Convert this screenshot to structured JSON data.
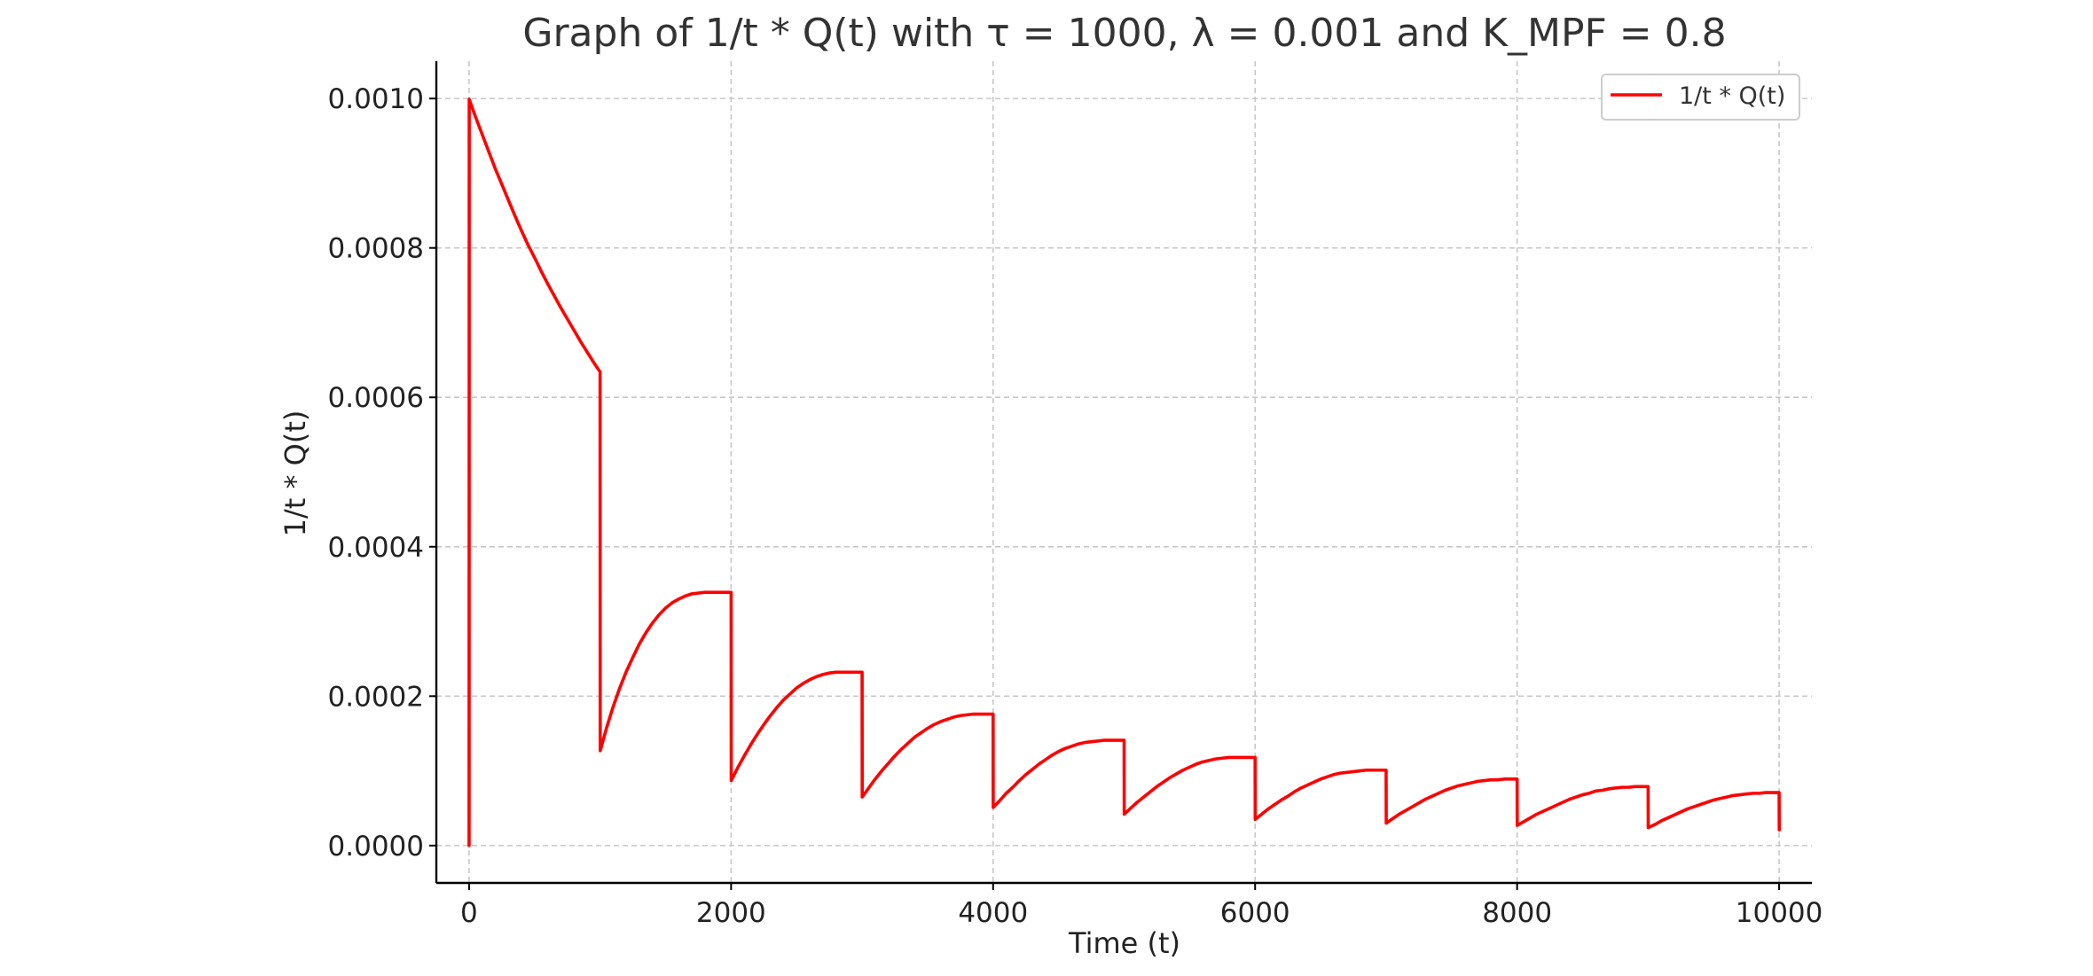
{
  "chart_data": {
    "type": "line",
    "title": "Graph of 1/t * Q(t) with τ = 1000, λ = 0.001 and K_MPF = 0.8",
    "xlabel": "Time (t)",
    "ylabel": "1/t * Q(t)",
    "xlim": [
      -250,
      10250
    ],
    "ylim": [
      -5e-05,
      0.00105
    ],
    "xticks": [
      0,
      2000,
      4000,
      6000,
      8000,
      10000
    ],
    "xtick_labels": [
      "0",
      "2000",
      "4000",
      "6000",
      "8000",
      "10000"
    ],
    "yticks": [
      0.0,
      0.0002,
      0.0004,
      0.0006,
      0.0008,
      0.001
    ],
    "ytick_labels": [
      "0.0000",
      "0.0002",
      "0.0004",
      "0.0006",
      "0.0008",
      "0.0010"
    ],
    "grid": true,
    "legend_position": "top-right",
    "series": [
      {
        "name": "1/t * Q(t)",
        "color": "#ff0000",
        "x": [
          0,
          1,
          50,
          100,
          150,
          200,
          250,
          300,
          350,
          400,
          450,
          500,
          550,
          600,
          650,
          700,
          750,
          800,
          850,
          900,
          950,
          1000,
          1001,
          1050,
          1100,
          1150,
          1200,
          1250,
          1300,
          1350,
          1400,
          1450,
          1500,
          1550,
          1600,
          1650,
          1700,
          1750,
          1800,
          1850,
          1900,
          1950,
          2000,
          2001,
          2050,
          2100,
          2150,
          2200,
          2250,
          2300,
          2350,
          2400,
          2450,
          2500,
          2550,
          2600,
          2650,
          2700,
          2750,
          2800,
          2850,
          2900,
          2950,
          3000,
          3001,
          3050,
          3100,
          3150,
          3200,
          3250,
          3300,
          3350,
          3400,
          3450,
          3500,
          3550,
          3600,
          3650,
          3700,
          3750,
          3800,
          3850,
          3900,
          3950,
          4000,
          4001,
          4050,
          4100,
          4150,
          4200,
          4250,
          4300,
          4350,
          4400,
          4450,
          4500,
          4550,
          4600,
          4650,
          4700,
          4750,
          4800,
          4850,
          4900,
          4950,
          5000,
          5001,
          5050,
          5100,
          5150,
          5200,
          5250,
          5300,
          5350,
          5400,
          5450,
          5500,
          5550,
          5600,
          5650,
          5700,
          5750,
          5800,
          5850,
          5900,
          5950,
          6000,
          6001,
          6050,
          6100,
          6150,
          6200,
          6250,
          6300,
          6350,
          6400,
          6450,
          6500,
          6550,
          6600,
          6650,
          6700,
          6750,
          6800,
          6850,
          6900,
          6950,
          7000,
          7001,
          7050,
          7100,
          7150,
          7200,
          7250,
          7300,
          7350,
          7400,
          7450,
          7500,
          7550,
          7600,
          7650,
          7700,
          7750,
          7800,
          7850,
          7900,
          7950,
          8000,
          8001,
          8050,
          8100,
          8150,
          8200,
          8250,
          8300,
          8350,
          8400,
          8450,
          8500,
          8550,
          8600,
          8650,
          8700,
          8750,
          8800,
          8850,
          8900,
          8950,
          9000,
          9001,
          9050,
          9100,
          9150,
          9200,
          9250,
          9300,
          9350,
          9400,
          9450,
          9500,
          9550,
          9600,
          9650,
          9700,
          9750,
          9800,
          9850,
          9900,
          9950,
          10000,
          10001
        ],
        "y": [
          0.0,
          0.000999,
          0.000975,
          0.000952,
          0.000929,
          0.000906,
          0.000885,
          0.000864,
          0.000843,
          0.000823,
          0.000804,
          0.000787,
          0.000769,
          0.000752,
          0.000736,
          0.00072,
          0.000705,
          0.00069,
          0.000675,
          0.000661,
          0.000647,
          0.000634,
          0.000127,
          0.000158,
          0.000186,
          0.000211,
          0.000233,
          0.000252,
          0.00027,
          0.000285,
          0.000298,
          0.000309,
          0.000318,
          0.000325,
          0.00033,
          0.000334,
          0.000337,
          0.000338,
          0.000339,
          0.000339,
          0.000339,
          0.000339,
          0.000339,
          8.7e-05,
          0.000104,
          0.00012,
          0.000135,
          0.000149,
          0.000162,
          0.000174,
          0.000185,
          0.000195,
          0.000203,
          0.000211,
          0.000217,
          0.000222,
          0.000226,
          0.000229,
          0.000231,
          0.000232,
          0.000232,
          0.000232,
          0.000232,
          0.000232,
          6.5e-05,
          7.7e-05,
          8.9e-05,
          0.0001,
          0.00011,
          0.00012,
          0.000129,
          0.000137,
          0.000145,
          0.000151,
          0.000157,
          0.000162,
          0.000166,
          0.000169,
          0.000172,
          0.000174,
          0.000175,
          0.000176,
          0.000176,
          0.000176,
          0.000176,
          5.1e-05,
          6e-05,
          7e-05,
          7.8e-05,
          8.7e-05,
          9.5e-05,
          0.000102,
          0.000109,
          0.000115,
          0.000121,
          0.000126,
          0.00013,
          0.000133,
          0.000136,
          0.000138,
          0.000139,
          0.00014,
          0.000141,
          0.000141,
          0.000141,
          0.000141,
          4.2e-05,
          5e-05,
          5.8e-05,
          6.5e-05,
          7.2e-05,
          7.9e-05,
          8.5e-05,
          9.1e-05,
          9.6e-05,
          0.000101,
          0.000105,
          0.000109,
          0.000112,
          0.000114,
          0.000116,
          0.000117,
          0.000118,
          0.000118,
          0.000118,
          0.000118,
          0.000118,
          3.5e-05,
          4.2e-05,
          4.9e-05,
          5.5e-05,
          6.1e-05,
          6.6e-05,
          7.2e-05,
          7.7e-05,
          8.1e-05,
          8.5e-05,
          8.9e-05,
          9.2e-05,
          9.5e-05,
          9.7e-05,
          9.8e-05,
          9.9e-05,
          0.0001,
          0.000101,
          0.000101,
          0.000101,
          0.000101,
          3e-05,
          3.6e-05,
          4.2e-05,
          4.7e-05,
          5.2e-05,
          5.7e-05,
          6.2e-05,
          6.6e-05,
          7e-05,
          7.4e-05,
          7.7e-05,
          8e-05,
          8.2e-05,
          8.4e-05,
          8.6e-05,
          8.7e-05,
          8.8e-05,
          8.8e-05,
          8.9e-05,
          8.9e-05,
          8.9e-05,
          2.7e-05,
          3.2e-05,
          3.7e-05,
          4.2e-05,
          4.6e-05,
          5e-05,
          5.4e-05,
          5.8e-05,
          6.2e-05,
          6.5e-05,
          6.8e-05,
          7e-05,
          7.3e-05,
          7.4e-05,
          7.6e-05,
          7.7e-05,
          7.8e-05,
          7.8e-05,
          7.9e-05,
          7.9e-05,
          7.9e-05,
          2.4e-05,
          2.8e-05,
          3.3e-05,
          3.7e-05,
          4.1e-05,
          4.5e-05,
          4.9e-05,
          5.2e-05,
          5.5e-05,
          5.8e-05,
          6.1e-05,
          6.3e-05,
          6.5e-05,
          6.7e-05,
          6.8e-05,
          6.9e-05,
          7e-05,
          7e-05,
          7.1e-05,
          7.1e-05,
          7.1e-05,
          2.1e-05
        ]
      }
    ]
  }
}
